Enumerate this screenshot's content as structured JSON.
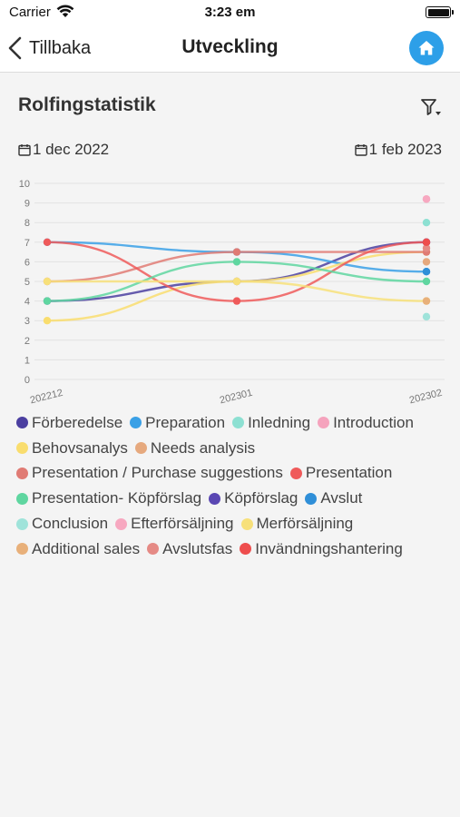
{
  "status_bar": {
    "carrier": "Carrier",
    "time": "3:23 em"
  },
  "nav": {
    "back_label": "Tillbaka",
    "title": "Utveckling",
    "home_icon": "home-icon",
    "accent": "#2d9fe8"
  },
  "card": {
    "title": "Rolfingstatistik",
    "filter_icon": "filter-icon"
  },
  "dates": {
    "start": "1 dec 2022",
    "end": "1 feb 2023"
  },
  "chart_data": {
    "type": "line",
    "categories": [
      "202212",
      "202301",
      "202302"
    ],
    "ylim": [
      0,
      10
    ],
    "yticks": [
      "0",
      "1",
      "2",
      "3",
      "4",
      "5",
      "6",
      "7",
      "8",
      "9",
      "10"
    ],
    "grid": true,
    "legend": "bottom",
    "series": [
      {
        "name": "Förberedelse",
        "color": "#4b3fa0",
        "values": [
          4,
          5,
          7
        ]
      },
      {
        "name": "Preparation",
        "color": "#3aa0e6",
        "values": [
          7,
          6.5,
          5.5
        ]
      },
      {
        "name": "Inledning",
        "color": "#8de0d2",
        "values": [
          null,
          null,
          8
        ]
      },
      {
        "name": "Introduction",
        "color": "#f5a3bd",
        "values": [
          null,
          null,
          9.2
        ]
      },
      {
        "name": "Behovsanalys",
        "color": "#f9dd6e",
        "values": [
          3,
          5,
          6.5
        ]
      },
      {
        "name": "Needs analysis",
        "color": "#e6a97e",
        "values": [
          null,
          null,
          6
        ]
      },
      {
        "name": "Presentation / Purchase suggestions",
        "color": "#e07b74",
        "values": [
          5,
          6.5,
          6.5
        ]
      },
      {
        "name": "Presentation",
        "color": "#ef5a5a",
        "values": [
          7,
          4,
          7
        ]
      },
      {
        "name": "Presentation- Köpförslag",
        "color": "#5fd6a0",
        "values": [
          4,
          6,
          5
        ]
      },
      {
        "name": "Köpförslag",
        "color": "#5a47b3",
        "values": [
          null,
          null,
          7
        ]
      },
      {
        "name": "Avslut",
        "color": "#2f8fd8",
        "values": [
          null,
          null,
          5.5
        ]
      },
      {
        "name": "Conclusion",
        "color": "#9fe3da",
        "values": [
          null,
          null,
          3.2
        ]
      },
      {
        "name": "Efterförsäljning",
        "color": "#f7a8c0",
        "values": [
          null,
          null,
          9.2
        ]
      },
      {
        "name": "Merförsäljning",
        "color": "#f7e07a",
        "values": [
          5,
          5,
          4
        ]
      },
      {
        "name": "Additional sales",
        "color": "#e8b07a",
        "values": [
          null,
          null,
          4
        ]
      },
      {
        "name": "Avslutsfas",
        "color": "#e58a85",
        "values": [
          null,
          null,
          6.7
        ]
      },
      {
        "name": "Invändningshantering",
        "color": "#ee4d4d",
        "values": [
          null,
          null,
          7
        ]
      }
    ]
  }
}
